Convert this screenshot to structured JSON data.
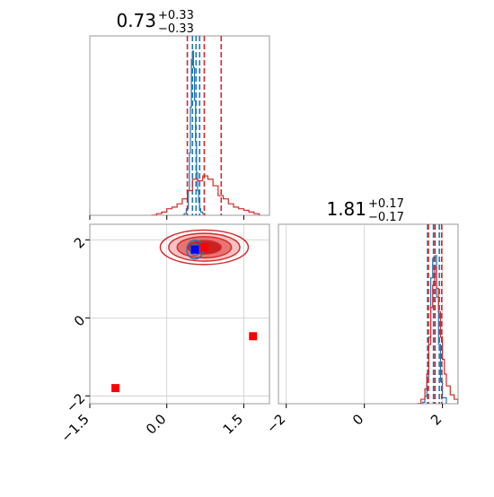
{
  "chart_data": [
    {
      "type": "histogram",
      "panel": "marginal-param-1",
      "title": {
        "main": "0.73",
        "upper": "+0.33",
        "lower": "−0.33"
      },
      "xlim": [
        -1.5,
        2.0
      ],
      "series": [
        {
          "color": "#1f77b4",
          "x": [
            0.3,
            0.34,
            0.38,
            0.42,
            0.44,
            0.46,
            0.48,
            0.5,
            0.52,
            0.54,
            0.56,
            0.58,
            0.6,
            0.62,
            0.64,
            0.66,
            0.7,
            0.74
          ],
          "y": [
            0.0,
            0.01,
            0.04,
            0.15,
            0.38,
            0.66,
            0.95,
            1.0,
            0.9,
            0.7,
            0.45,
            0.26,
            0.15,
            0.08,
            0.04,
            0.02,
            0.01,
            0.0
          ],
          "quantiles": [
            0.5,
            0.57,
            0.64
          ]
        },
        {
          "color": "#d62728",
          "x": [
            -0.3,
            -0.2,
            -0.1,
            0.0,
            0.1,
            0.2,
            0.3,
            0.4,
            0.5,
            0.6,
            0.7,
            0.8,
            0.9,
            1.0,
            1.1,
            1.2,
            1.3,
            1.4,
            1.5,
            1.6,
            1.7,
            1.8
          ],
          "y": [
            0.0,
            0.01,
            0.02,
            0.04,
            0.05,
            0.07,
            0.1,
            0.15,
            0.22,
            0.21,
            0.24,
            0.22,
            0.18,
            0.12,
            0.1,
            0.07,
            0.05,
            0.04,
            0.03,
            0.02,
            0.01,
            0.0
          ],
          "quantiles": [
            0.4,
            0.73,
            1.06
          ]
        }
      ]
    },
    {
      "type": "histogram",
      "panel": "marginal-param-2",
      "title": {
        "main": "1.81",
        "upper": "+0.17",
        "lower": "−0.17"
      },
      "xlim": [
        -2.2,
        2.4
      ],
      "xticks": [
        -2,
        0,
        2
      ],
      "series": [
        {
          "color": "#1f77b4",
          "x": [
            1.4,
            1.5,
            1.55,
            1.6,
            1.65,
            1.7,
            1.75,
            1.8,
            1.85,
            1.9,
            1.95,
            2.0,
            2.1
          ],
          "y": [
            0.0,
            0.01,
            0.05,
            0.18,
            0.45,
            0.85,
            0.98,
            1.0,
            0.72,
            0.4,
            0.15,
            0.04,
            0.0
          ],
          "quantiles": [
            1.62,
            1.77,
            1.92
          ]
        },
        {
          "color": "#d62728",
          "x": [
            1.35,
            1.45,
            1.55,
            1.6,
            1.65,
            1.7,
            1.75,
            1.8,
            1.85,
            1.9,
            1.95,
            2.0,
            2.05,
            2.1,
            2.2,
            2.3,
            2.4
          ],
          "y": [
            0.0,
            0.03,
            0.1,
            0.2,
            0.4,
            0.65,
            0.8,
            0.92,
            0.78,
            0.62,
            0.45,
            0.3,
            0.2,
            0.12,
            0.06,
            0.03,
            0.01
          ],
          "quantiles": [
            1.64,
            1.81,
            1.98
          ]
        }
      ]
    },
    {
      "type": "contour-scatter",
      "panel": "joint-param-1-param-2",
      "xlim": [
        -1.5,
        2.0
      ],
      "ylim": [
        -2.2,
        2.4
      ],
      "xticks": [
        -1.5,
        0.0,
        1.5
      ],
      "yticks": [
        -2,
        0,
        2
      ],
      "grid": true,
      "red_contour": {
        "center": [
          0.73,
          1.81
        ],
        "sigma": [
          0.33,
          0.17
        ],
        "levels": [
          1.0,
          1.6,
          2.1,
          2.6
        ]
      },
      "blue_contour": {
        "center": [
          0.55,
          1.75
        ],
        "sigma": [
          0.08,
          0.12
        ],
        "levels": [
          1.2,
          2.0
        ]
      },
      "points": [
        {
          "x": -1.0,
          "y": -1.8,
          "color": "#ff0000"
        },
        {
          "x": 1.68,
          "y": -0.47,
          "color": "#ff0000"
        },
        {
          "x": 0.73,
          "y": 1.81,
          "color": "#ff0000"
        },
        {
          "x": 0.55,
          "y": 1.75,
          "color": "#0000ff"
        }
      ]
    }
  ]
}
